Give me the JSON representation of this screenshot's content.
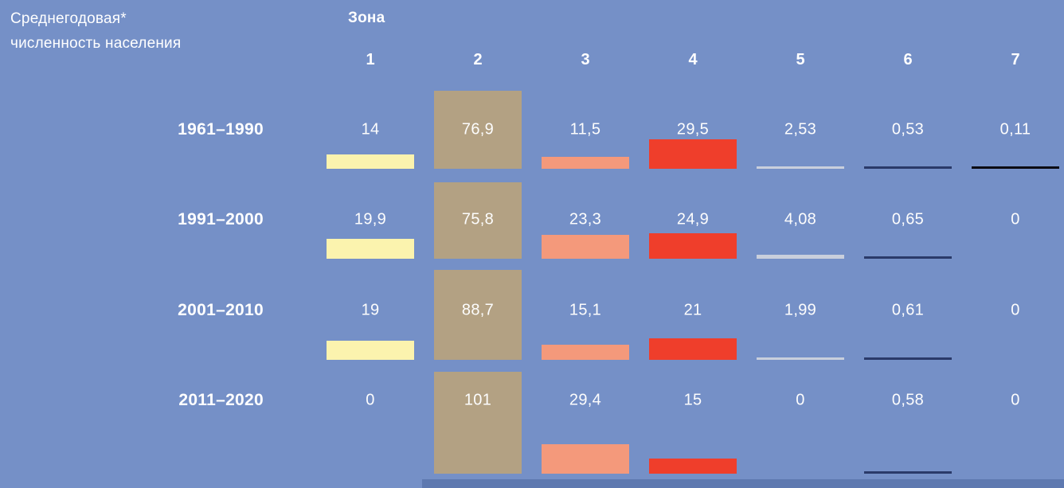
{
  "colors": {
    "page_bg": "#7590C7",
    "footer_strip": "#5E79B0",
    "text": "#FFFFFF"
  },
  "header": {
    "title_line1": "Среднегодовая*",
    "title_line2": "численность населения",
    "zone_label": "Зона"
  },
  "chart_data": {
    "type": "bar",
    "title": "Среднегодовая* численность населения",
    "group_label": "Зона",
    "categories": [
      "1",
      "2",
      "3",
      "4",
      "5",
      "6",
      "7"
    ],
    "legend_position": "none",
    "grid": false,
    "columns": [
      {
        "zone": "1",
        "color": "#FBF3AE"
      },
      {
        "zone": "2",
        "color": "#B3A183"
      },
      {
        "zone": "3",
        "color": "#F4997B"
      },
      {
        "zone": "4",
        "color": "#EF3E2B"
      },
      {
        "zone": "5",
        "color": "#C9CFDC"
      },
      {
        "zone": "6",
        "color": "#2A3A69"
      },
      {
        "zone": "7",
        "color": "#0B0B13"
      }
    ],
    "series": [
      {
        "name": "1961–1990",
        "values": [
          14,
          76.9,
          11.5,
          29.5,
          2.53,
          0.53,
          0.11
        ],
        "labels": [
          "14",
          "76,9",
          "11,5",
          "29,5",
          "2,53",
          "0,53",
          "0,11"
        ]
      },
      {
        "name": "1991–2000",
        "values": [
          19.9,
          75.8,
          23.3,
          24.9,
          4.08,
          0.65,
          0
        ],
        "labels": [
          "19,9",
          "75,8",
          "23,3",
          "24,9",
          "4,08",
          "0,65",
          "0"
        ]
      },
      {
        "name": "2001–2010",
        "values": [
          19,
          88.7,
          15.1,
          21,
          1.99,
          0.61,
          0
        ],
        "labels": [
          "19",
          "88,7",
          "15,1",
          "21",
          "1,99",
          "0,61",
          "0"
        ]
      },
      {
        "name": "2011–2020",
        "values": [
          0,
          101,
          29.4,
          15,
          0,
          0.58,
          0
        ],
        "labels": [
          "0",
          "101",
          "29,4",
          "15",
          "0",
          "0,58",
          "0"
        ]
      }
    ]
  }
}
